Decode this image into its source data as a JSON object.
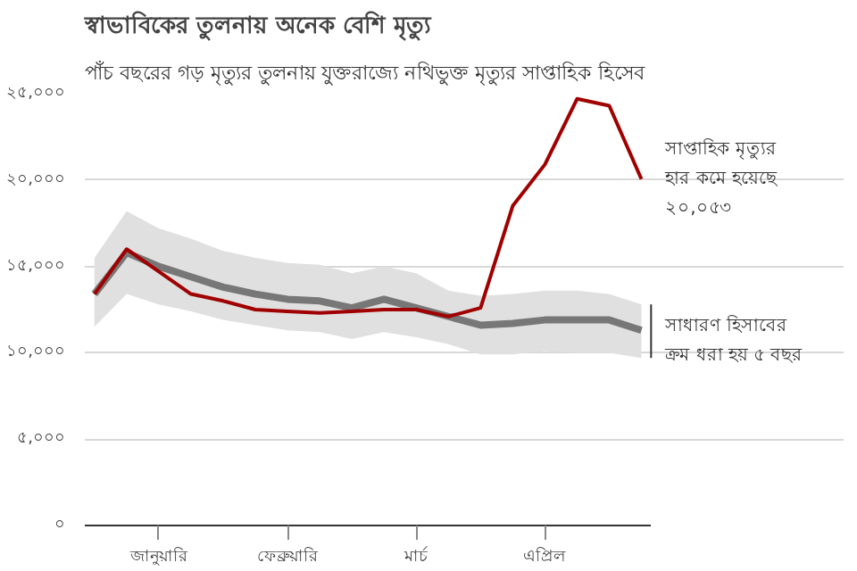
{
  "chart_data": {
    "type": "line",
    "title": "স্বাভাবিকের তুলনায় অনেক বেশি মৃত্যু",
    "subtitle": "পাঁচ বছরের গড় মৃত্যুর তুলনায় যুক্তরাজ্যে নথিভুক্ত মৃত্যুর সাপ্তাহিক হিসেব",
    "categories": [
      null,
      null,
      "জানুয়ারি",
      null,
      null,
      null,
      "ফেব্রুয়ারি",
      null,
      null,
      null,
      "মার্চ",
      null,
      null,
      null,
      "এপ্রিল",
      null,
      null,
      null
    ],
    "series": [
      {
        "color": "#777777",
        "values": [
          13400,
          15800,
          15000,
          14400,
          13800,
          13400,
          13100,
          13000,
          12600,
          13100,
          12600,
          12100,
          11600,
          11700,
          11900,
          11900,
          11900,
          11300
        ],
        "lower": [
          11500,
          13400,
          12800,
          12400,
          11900,
          11600,
          11300,
          11200,
          10800,
          11200,
          10900,
          10500,
          9900,
          9900,
          10100,
          10000,
          10000,
          9700
        ],
        "upper": [
          15500,
          18200,
          17200,
          16600,
          15900,
          15500,
          15200,
          15100,
          14600,
          15000,
          14600,
          13600,
          13300,
          13400,
          13600,
          13600,
          13400,
          12800
        ]
      },
      {
        "color": "#a00000",
        "values": [
          13400,
          16000,
          14700,
          13400,
          13000,
          12500,
          12400,
          12300,
          12400,
          12500,
          12500,
          12100,
          12600,
          18500,
          20900,
          24700,
          24300,
          20053
        ]
      }
    ],
    "ylim": [
      0,
      25000
    ],
    "yticks": [
      {
        "value": 0,
        "label": "০"
      },
      {
        "value": 5000,
        "label": "৫,০০০"
      },
      {
        "value": 10000,
        "label": "১০,০০০"
      },
      {
        "value": 15000,
        "label": "১৫,০০০"
      },
      {
        "value": 20000,
        "label": "২০,০০০"
      },
      {
        "value": 25000,
        "label": "২৫,০০০"
      }
    ],
    "annotations": [
      "সাপ্তাহিক মৃত্যুর\nহার কমে হয়েছে\n২০,০৫৩",
      "সাধারণ হিসাবের\nক্রম ধরা হয় ৫ বছর"
    ],
    "grid": "y",
    "line_style": "solid",
    "marker": "none"
  }
}
